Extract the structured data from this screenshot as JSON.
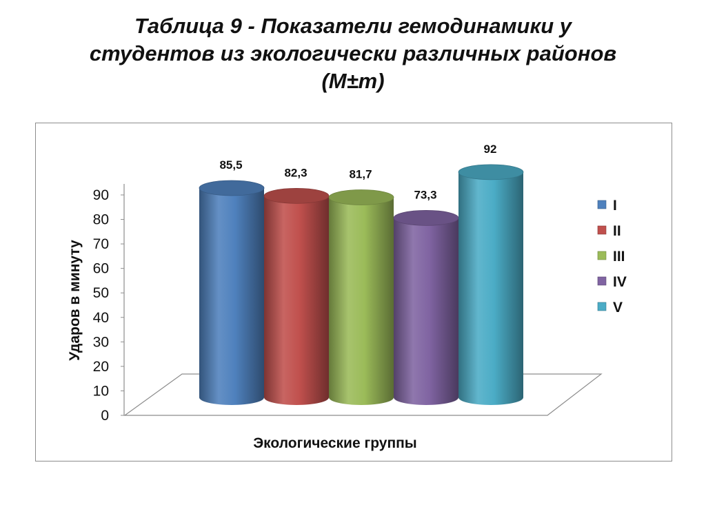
{
  "title": {
    "lines": [
      "Таблица 9 - Показатели гемодинамики у",
      "студентов из экологически различных районов",
      "(М±m)"
    ]
  },
  "chart_data": {
    "type": "bar",
    "style": "3d-cylinder",
    "xlabel": "Экологические группы",
    "ylabel": "Ударов в минуту",
    "ylim": [
      0,
      90
    ],
    "yticks": [
      0,
      10,
      20,
      30,
      40,
      50,
      60,
      70,
      80,
      90
    ],
    "grid": false,
    "legend_position": "right",
    "series": [
      {
        "name": "I",
        "value": 85.5,
        "label": "85,5",
        "color": "#4f81bd"
      },
      {
        "name": "II",
        "value": 82.3,
        "label": "82,3",
        "color": "#c0504d"
      },
      {
        "name": "III",
        "value": 81.7,
        "label": "81,7",
        "color": "#9bbb59"
      },
      {
        "name": "IV",
        "value": 73.3,
        "label": "73,3",
        "color": "#8064a2"
      },
      {
        "name": "V",
        "value": 92,
        "label": "92",
        "color": "#4bacc6"
      }
    ]
  }
}
